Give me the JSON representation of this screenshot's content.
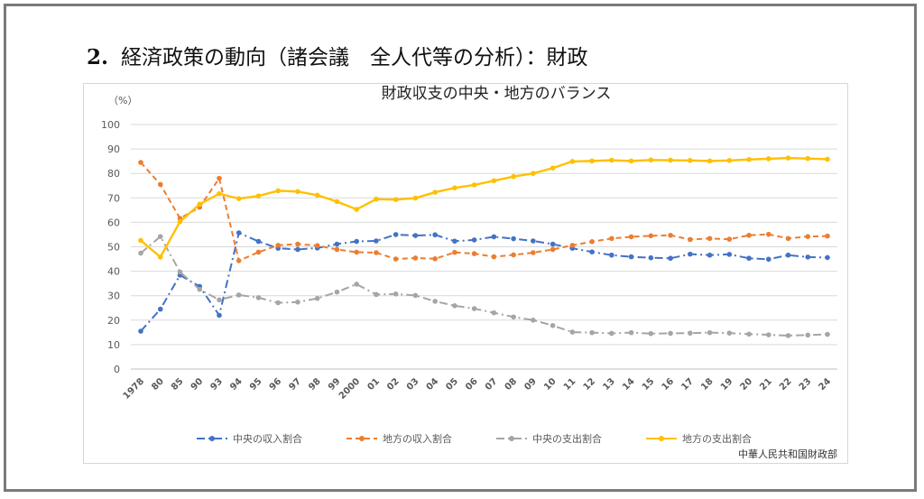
{
  "heading": {
    "number": "2.",
    "text": "経済政策の動向（諸会議　全人代等の分析）：財政"
  },
  "chart_data": {
    "type": "line",
    "title": "財政収支の中央・地方のバランス",
    "unit_label": "（%）",
    "source": "中華人民共和国財政部",
    "ylim": [
      0,
      100
    ],
    "yticks": [
      0,
      10,
      20,
      30,
      40,
      50,
      60,
      70,
      80,
      90,
      100
    ],
    "grid": true,
    "legend_position": "bottom",
    "categories": [
      "1978",
      "80",
      "85",
      "90",
      "93",
      "94",
      "95",
      "96",
      "97",
      "98",
      "99",
      "2000",
      "01",
      "02",
      "03",
      "04",
      "05",
      "06",
      "07",
      "08",
      "09",
      "10",
      "11",
      "12",
      "13",
      "14",
      "15",
      "16",
      "17",
      "18",
      "19",
      "20",
      "21",
      "22",
      "23",
      "24"
    ],
    "series": [
      {
        "name": "中央の収入割合",
        "color": "#4472c4",
        "dash": "dashdot",
        "values": [
          15.5,
          24.5,
          38.4,
          33.8,
          22.0,
          55.7,
          52.2,
          49.4,
          48.9,
          49.5,
          51.1,
          52.2,
          52.4,
          55.0,
          54.6,
          54.9,
          52.3,
          52.8,
          54.1,
          53.3,
          52.4,
          51.1,
          49.4,
          47.9,
          46.6,
          45.9,
          45.5,
          45.3,
          47.0,
          46.6,
          46.9,
          45.3,
          44.9,
          46.6,
          45.8,
          45.6
        ]
      },
      {
        "name": "地方の収入割合",
        "color": "#ed7d31",
        "dash": "dash",
        "values": [
          84.5,
          75.5,
          61.6,
          66.2,
          78.0,
          44.3,
          47.8,
          50.6,
          51.1,
          50.5,
          48.9,
          47.8,
          47.6,
          45.0,
          45.4,
          45.1,
          47.7,
          47.2,
          45.9,
          46.7,
          47.6,
          48.9,
          50.6,
          52.1,
          53.4,
          54.1,
          54.5,
          54.7,
          53.0,
          53.4,
          53.1,
          54.7,
          55.1,
          53.4,
          54.2,
          54.4
        ]
      },
      {
        "name": "中央の支出割合",
        "color": "#a5a5a5",
        "dash": "dashdot",
        "values": [
          47.4,
          54.2,
          39.7,
          32.6,
          28.3,
          30.3,
          29.2,
          27.1,
          27.4,
          28.9,
          31.5,
          34.7,
          30.5,
          30.7,
          30.1,
          27.7,
          25.9,
          24.7,
          23.0,
          21.3,
          20.0,
          17.8,
          15.1,
          14.9,
          14.6,
          14.9,
          14.5,
          14.6,
          14.7,
          14.9,
          14.7,
          14.3,
          14.0,
          13.7,
          13.9,
          14.2
        ]
      },
      {
        "name": "地方の支出割合",
        "color": "#ffc000",
        "dash": "solid",
        "values": [
          52.6,
          45.8,
          60.3,
          67.4,
          71.7,
          69.7,
          70.8,
          72.9,
          72.6,
          71.1,
          68.5,
          65.3,
          69.5,
          69.3,
          69.9,
          72.3,
          74.1,
          75.3,
          77.0,
          78.7,
          80.0,
          82.2,
          84.9,
          85.1,
          85.4,
          85.1,
          85.5,
          85.4,
          85.3,
          85.1,
          85.3,
          85.7,
          86.0,
          86.3,
          86.1,
          85.8
        ]
      }
    ]
  }
}
